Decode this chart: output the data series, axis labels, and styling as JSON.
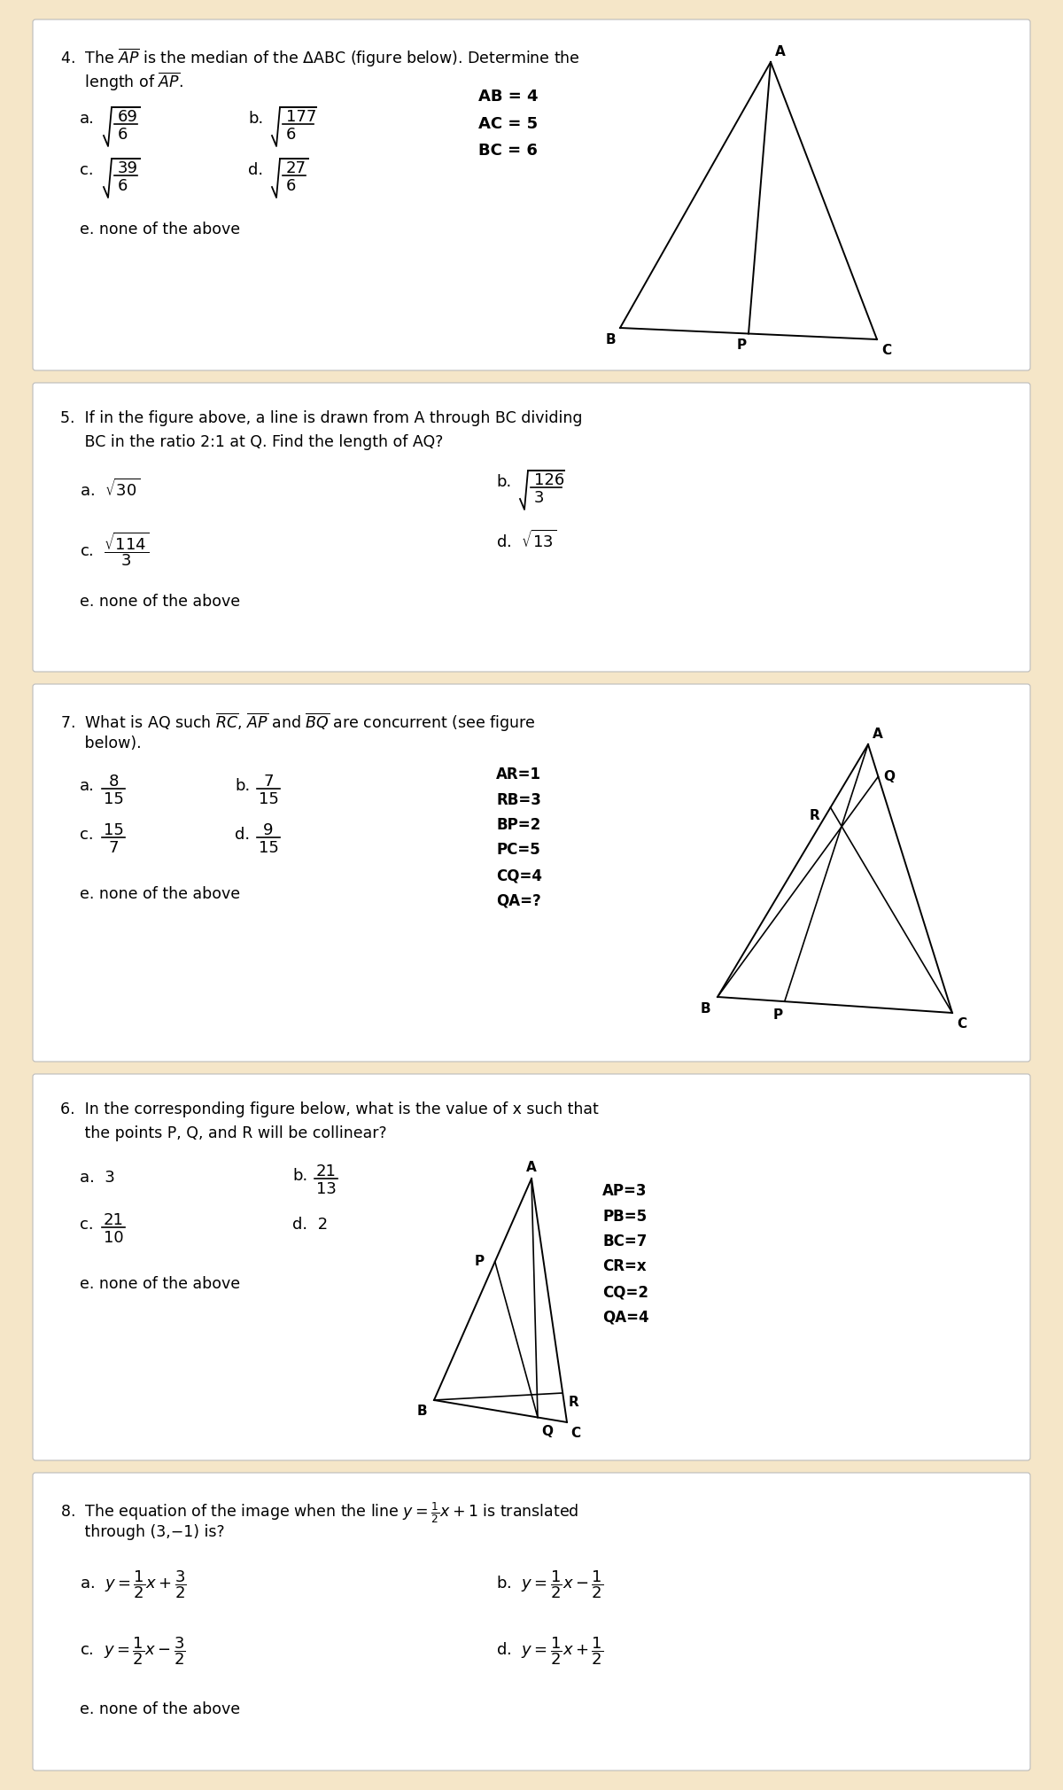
{
  "bg_color": "#f5e6c8",
  "card_color": "#ffffff",
  "card_border": "#bbbbbb",
  "q4_text1": "4.  The $\\overline{AP}$ is the median of the ΔABC (figure below). Determine the",
  "q4_text2": "     length of $\\overline{AP}$.",
  "q4_side": "AB = 4\nAC = 5\nBC = 6",
  "q5_text1": "5.  If in the figure above, a line is drawn from A through BC dividing",
  "q5_text2": "     BC in the ratio 2:1 at Q. Find the length of AQ?",
  "q7_text1": "7.  What is AQ such $\\overline{RC}$, $\\overline{AP}$ and $\\overline{BQ}$ are concurrent (see figure",
  "q7_text2": "     below).",
  "q7_side": "AR=1\nRB=3\nBP=2\nPC=5\nCQ=4\nQA=?",
  "q6_text1": "6.  In the corresponding figure below, what is the value of x such that",
  "q6_text2": "     the points P, Q, and R will be collinear?",
  "q6_side": "AP=3\nPB=5\nBC=7\nCR=x\nCQ=2\nQA=4",
  "q8_text1": "8.  The equation of the image when the line $y = \\frac{1}{2}x + 1$ is translated",
  "q8_text2": "     through (3,−1) is?"
}
